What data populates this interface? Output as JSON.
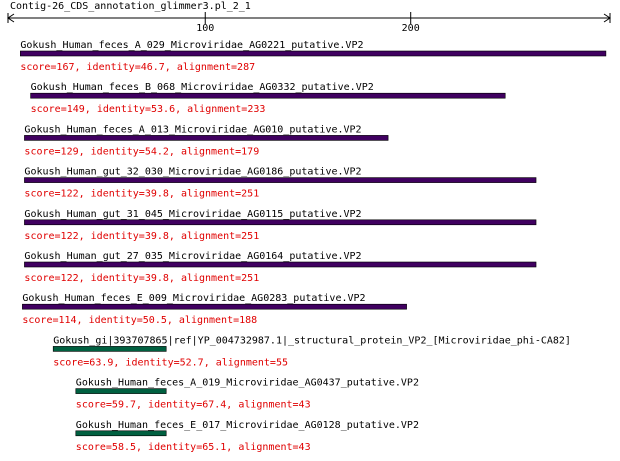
{
  "title": "Contig-26_CDS_annotation_glimmer3.pl_2_1",
  "ruler": {
    "xlim": [
      4,
      297
    ],
    "xticks": [
      100,
      200
    ]
  },
  "hits": [
    {
      "name": "Gokush_Human_feces_A_029_Microviridae_AG0221_putative.VP2",
      "summary": "score=167, identity=46.7, alignment=287",
      "start": 10,
      "end": 295,
      "color": "#400060"
    },
    {
      "name": "Gokush_Human_feces_B_068_Microviridae_AG0332_putative.VP2",
      "summary": "score=149, identity=53.6, alignment=233",
      "start": 15,
      "end": 246,
      "color": "#400060"
    },
    {
      "name": "Gokush_Human_feces_A_013_Microviridae_AG010_putative.VP2",
      "summary": "score=129, identity=54.2, alignment=179",
      "start": 12,
      "end": 189,
      "color": "#400060"
    },
    {
      "name": "Gokush_Human_gut_32_030_Microviridae_AG0186_putative.VP2",
      "summary": "score=122, identity=39.8, alignment=251",
      "start": 12,
      "end": 261,
      "color": "#400060"
    },
    {
      "name": "Gokush_Human_gut_31_045_Microviridae_AG0115_putative.VP2",
      "summary": "score=122, identity=39.8, alignment=251",
      "start": 12,
      "end": 261,
      "color": "#400060"
    },
    {
      "name": "Gokush_Human_gut_27_035_Microviridae_AG0164_putative.VP2",
      "summary": "score=122, identity=39.8, alignment=251",
      "start": 12,
      "end": 261,
      "color": "#400060"
    },
    {
      "name": "Gokush_Human_feces_E_009_Microviridae_AG0283_putative.VP2",
      "summary": "score=114, identity=50.5, alignment=188",
      "start": 11,
      "end": 198,
      "color": "#400060"
    },
    {
      "name": "Gokush_gi|393707865|ref|YP_004732987.1|_structural_protein_VP2_[Microviridae_phi-CA82]",
      "summary": "score=63.9, identity=52.7, alignment=55",
      "start": 26,
      "end": 81,
      "color": "#006040"
    },
    {
      "name": "Gokush_Human_feces_A_019_Microviridae_AG0437_putative.VP2",
      "summary": "score=59.7, identity=67.4, alignment=43",
      "start": 37,
      "end": 81,
      "color": "#006040"
    },
    {
      "name": "Gokush_Human_feces_E_017_Microviridae_AG0128_putative.VP2",
      "summary": "score=58.5, identity=65.1, alignment=43",
      "start": 37,
      "end": 81,
      "color": "#006040"
    }
  ]
}
